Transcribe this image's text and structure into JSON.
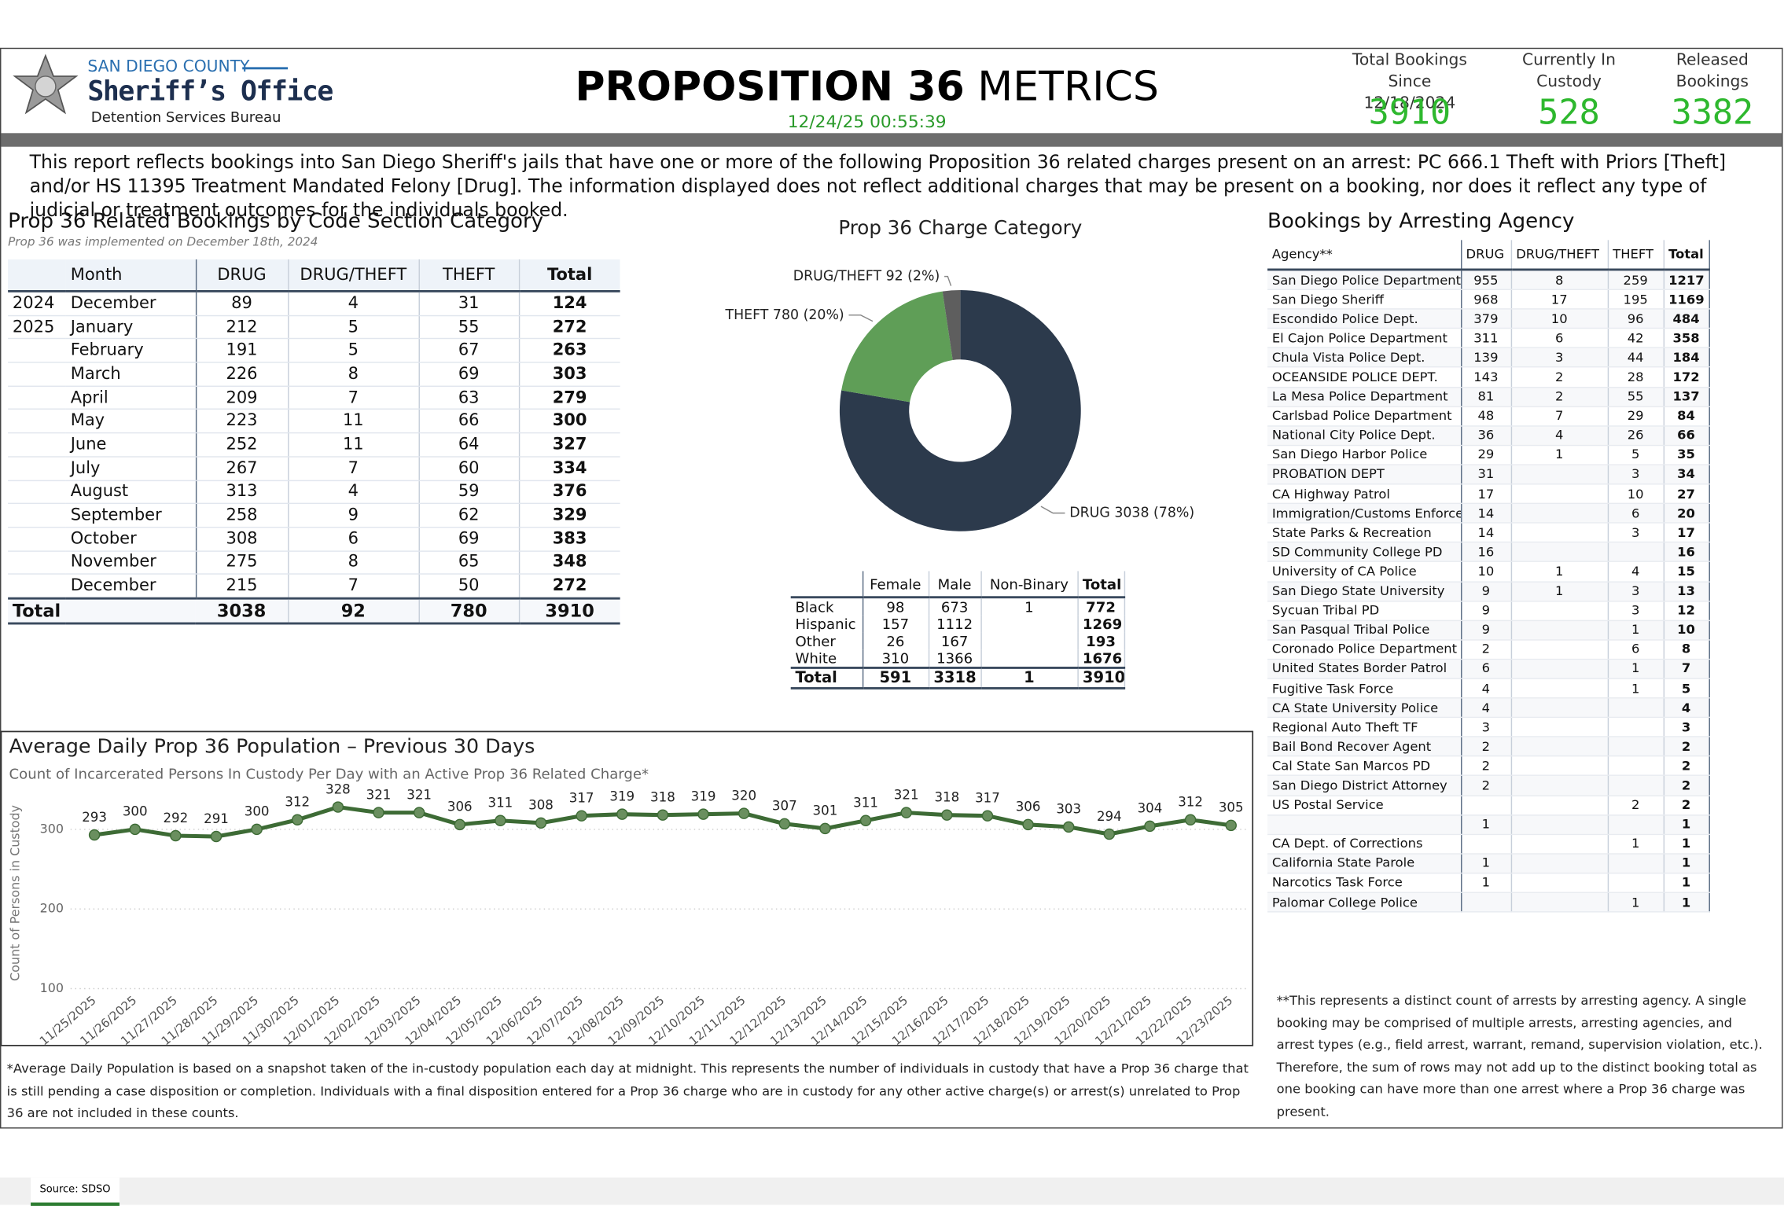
{
  "header": {
    "org_line1": "SAN DIEGO COUNTY",
    "org_line2": "Sheriff’s Office",
    "org_line3": "Detention Services Bureau",
    "title_bold": "PROPOSITION 36",
    "title_rest": "METRICS",
    "timestamp": "12/24/25 00:55:39"
  },
  "kpis": [
    {
      "label": "Total Bookings Since 12/18/2024",
      "value": 3910
    },
    {
      "label": "Currently In Custody",
      "value": 528
    },
    {
      "label": "Released Bookings",
      "value": 3382
    }
  ],
  "description": "This report reflects bookings into San Diego Sheriff's jails that have one or more of the following Proposition 36 related charges present on an arrest: PC 666.1 Theft with Priors [Theft] and/or HS 11395 Treatment Mandated Felony [Drug]. The information displayed does not reflect additional charges that may be present on a booking, nor does it reflect any type of judicial or treatment outcomes for the individuals booked.",
  "monthly_table": {
    "title": "Prop 36 Related Bookings by Code Section Category",
    "subtitle": "Prop 36 was implemented on December 18th, 2024",
    "columns": [
      "Month",
      "DRUG",
      "DRUG/THEFT",
      "THEFT",
      "Total"
    ],
    "rows": [
      [
        "2024",
        "December",
        89,
        4,
        31,
        124
      ],
      [
        "2025",
        "January",
        212,
        5,
        55,
        272
      ],
      [
        null,
        "February",
        191,
        5,
        67,
        263
      ],
      [
        null,
        "March",
        226,
        8,
        69,
        303
      ],
      [
        null,
        "April",
        209,
        7,
        63,
        279
      ],
      [
        null,
        "May",
        223,
        11,
        66,
        300
      ],
      [
        null,
        "June",
        252,
        11,
        64,
        327
      ],
      [
        null,
        "July",
        267,
        7,
        60,
        334
      ],
      [
        null,
        "August",
        313,
        4,
        59,
        376
      ],
      [
        null,
        "September",
        258,
        9,
        62,
        329
      ],
      [
        null,
        "October",
        308,
        6,
        69,
        383
      ],
      [
        null,
        "November",
        275,
        8,
        65,
        348
      ],
      [
        null,
        "December",
        215,
        7,
        50,
        272
      ]
    ],
    "total_row": [
      "Total",
      3038,
      92,
      780,
      3910
    ]
  },
  "chart_data": [
    {
      "type": "donut",
      "title": "Prop 36 Charge Category",
      "categories": [
        "DRUG",
        "THEFT",
        "DRUG/THEFT"
      ],
      "values": [
        3038,
        780,
        92
      ],
      "value_labels": [
        "DRUG 3038 (78%)",
        "THEFT 780 (20%)",
        "DRUG/THEFT 92 (2%)"
      ],
      "colors": [
        "#2c3a4c",
        "#5f9e57",
        "#5e5e5e"
      ]
    },
    {
      "type": "line",
      "title": "Average Daily Prop 36 Population – Previous 30 Days",
      "subtitle": "Count of Incarcerated Persons In Custody Per Day with an Active Prop 36 Related Charge*",
      "y_label": "Count of Persons in Custody",
      "x": [
        "11/25/2025",
        "11/26/2025",
        "11/27/2025",
        "11/28/2025",
        "11/29/2025",
        "11/30/2025",
        "12/01/2025",
        "12/02/2025",
        "12/03/2025",
        "12/04/2025",
        "12/05/2025",
        "12/06/2025",
        "12/07/2025",
        "12/08/2025",
        "12/09/2025",
        "12/10/2025",
        "12/11/2025",
        "12/12/2025",
        "12/13/2025",
        "12/14/2025",
        "12/15/2025",
        "12/16/2025",
        "12/17/2025",
        "12/18/2025",
        "12/19/2025",
        "12/20/2025",
        "12/21/2025",
        "12/22/2025",
        "12/23/2025"
      ],
      "values": [
        293,
        300,
        292,
        291,
        300,
        312,
        328,
        321,
        321,
        306,
        311,
        308,
        317,
        319,
        318,
        319,
        320,
        307,
        301,
        311,
        321,
        318,
        317,
        306,
        303,
        294,
        304,
        312,
        305
      ],
      "color": "#3d6b35",
      "ylim": [
        100,
        340
      ],
      "yticks": [
        100,
        200,
        300
      ],
      "grid": true
    }
  ],
  "demographics_table": {
    "columns": [
      "Female",
      "Male",
      "Non-Binary",
      "Total"
    ],
    "rows": [
      [
        "Black",
        98,
        673,
        1,
        772
      ],
      [
        "Hispanic",
        157,
        1112,
        null,
        1269
      ],
      [
        "Other",
        26,
        167,
        null,
        193
      ],
      [
        "White",
        310,
        1366,
        null,
        1676
      ]
    ],
    "total_row": [
      "Total",
      591,
      3318,
      1,
      3910
    ]
  },
  "agency_table": {
    "title": "Bookings by Arresting Agency",
    "columns": [
      "Agency**",
      "DRUG",
      "DRUG/THEFT",
      "THEFT",
      "Total"
    ],
    "rows": [
      [
        "San Diego Police Department",
        955,
        8,
        259,
        1217
      ],
      [
        "San Diego Sheriff",
        968,
        17,
        195,
        1169
      ],
      [
        "Escondido Police Dept.",
        379,
        10,
        96,
        484
      ],
      [
        "El Cajon Police Department",
        311,
        6,
        42,
        358
      ],
      [
        "Chula Vista Police Dept.",
        139,
        3,
        44,
        184
      ],
      [
        "OCEANSIDE POLICE DEPT.",
        143,
        2,
        28,
        172
      ],
      [
        "La Mesa Police Department",
        81,
        2,
        55,
        137
      ],
      [
        "Carlsbad Police Department",
        48,
        7,
        29,
        84
      ],
      [
        "National City Police Dept.",
        36,
        4,
        26,
        66
      ],
      [
        "San Diego Harbor Police",
        29,
        1,
        5,
        35
      ],
      [
        "PROBATION DEPT",
        31,
        null,
        3,
        34
      ],
      [
        "CA Highway Patrol",
        17,
        null,
        10,
        27
      ],
      [
        "Immigration/Customs Enforce",
        14,
        null,
        6,
        20
      ],
      [
        "State Parks & Recreation",
        14,
        null,
        3,
        17
      ],
      [
        "SD Community College PD",
        16,
        null,
        null,
        16
      ],
      [
        "University of CA Police",
        10,
        1,
        4,
        15
      ],
      [
        "San Diego State University",
        9,
        1,
        3,
        13
      ],
      [
        "Sycuan Tribal PD",
        9,
        null,
        3,
        12
      ],
      [
        "San Pasqual Tribal Police",
        9,
        null,
        1,
        10
      ],
      [
        "Coronado Police Department",
        2,
        null,
        6,
        8
      ],
      [
        "United States Border Patrol",
        6,
        null,
        1,
        7
      ],
      [
        "Fugitive Task Force",
        4,
        null,
        1,
        5
      ],
      [
        "CA State University Police",
        4,
        null,
        null,
        4
      ],
      [
        "Regional Auto Theft TF",
        3,
        null,
        null,
        3
      ],
      [
        "Bail Bond Recover Agent",
        2,
        null,
        null,
        2
      ],
      [
        "Cal State San Marcos PD",
        2,
        null,
        null,
        2
      ],
      [
        "San Diego District Attorney",
        2,
        null,
        null,
        2
      ],
      [
        "US Postal Service",
        null,
        null,
        2,
        2
      ],
      [
        null,
        1,
        null,
        null,
        1
      ],
      [
        "CA Dept. of Corrections",
        null,
        null,
        1,
        1
      ],
      [
        "California State Parole",
        1,
        null,
        null,
        1
      ],
      [
        "Narcotics Task Force",
        1,
        null,
        null,
        1
      ],
      [
        "Palomar College Police",
        null,
        null,
        1,
        1
      ]
    ],
    "note": "**This represents a distinct count of arrests by arresting agency. A single booking may be comprised of multiple arrests, arresting agencies, and arrest types (e.g., field arrest, warrant, remand, supervision violation, etc.). Therefore, the sum of rows may not add up to the distinct booking total as one booking can have more than one arrest where a Prop 36 charge was present."
  },
  "footnote": "*Average Daily Population is based on a snapshot taken of the in-custody population each day at midnight. This represents the number of individuals in custody that have a Prop 36 charge that is still pending a case disposition or completion. Individuals with a final disposition entered for a Prop 36 charge who are in custody for any other active charge(s) or arrest(s) unrelated to Prop 36 are not included in these counts.",
  "source_tab": "Source: SDSO"
}
